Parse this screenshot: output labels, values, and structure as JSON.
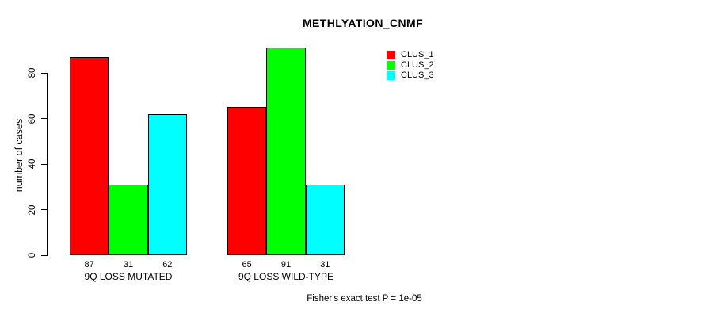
{
  "chart_data": {
    "type": "bar",
    "title": "METHLYATION_CNMF",
    "ylabel": "number of cases",
    "xlabel": "",
    "ylim": [
      0,
      80
    ],
    "yticks": [
      0,
      20,
      40,
      60,
      80
    ],
    "categories": [
      "9Q LOSS MUTATED",
      "9Q LOSS WILD-TYPE"
    ],
    "series": [
      {
        "name": "CLUS_1",
        "color": "#ff0000",
        "values": [
          87,
          65
        ]
      },
      {
        "name": "CLUS_2",
        "color": "#00ff00",
        "values": [
          31,
          91
        ]
      },
      {
        "name": "CLUS_3",
        "color": "#00ffff",
        "values": [
          62,
          31
        ]
      }
    ],
    "bar_value_labels": true,
    "legend_position": "top-right",
    "grid": false,
    "annotation": "Fisher's exact test P = 1e-05"
  }
}
